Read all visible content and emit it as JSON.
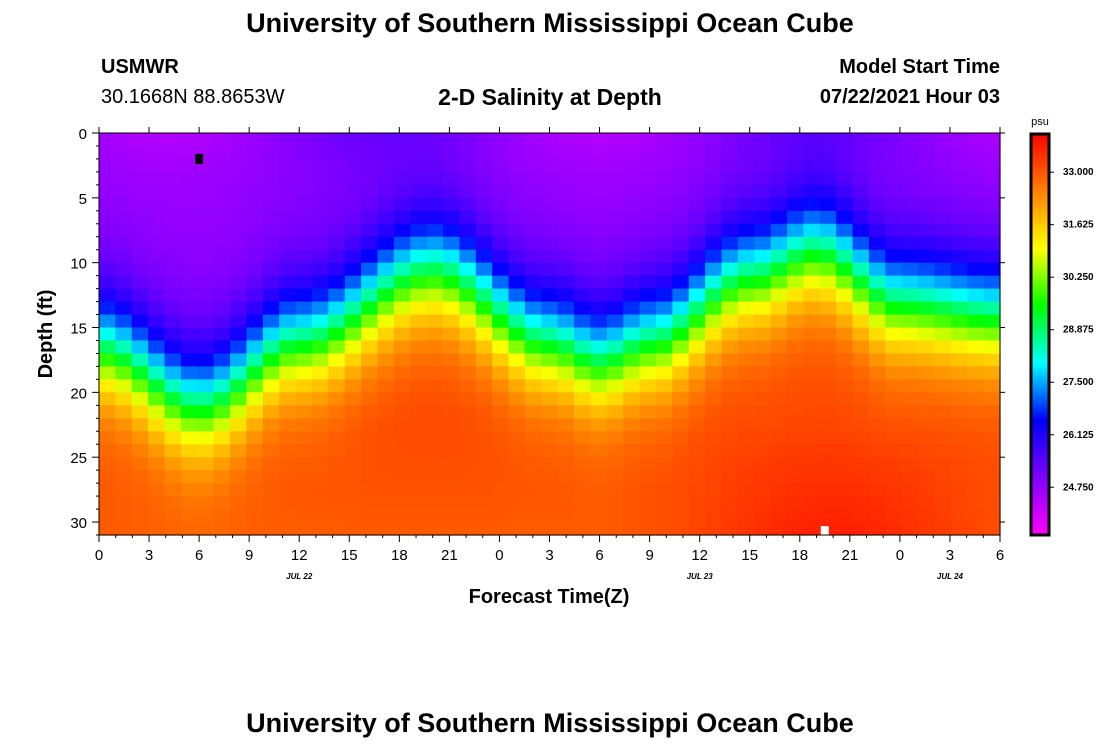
{
  "header": {
    "title": "University of Southern Mississippi Ocean Cube",
    "station_id": "USMWR",
    "station_coords": "30.1668N  88.8653W",
    "plot_title": "2-D Salinity at Depth",
    "model_start_label": "Model Start Time",
    "model_start_value": "07/22/2021 Hour 03"
  },
  "footer": {
    "title": "University of Southern Mississippi Ocean Cube"
  },
  "chart_data": {
    "type": "heatmap",
    "title": "2-D Salinity at Depth",
    "xlabel": "Forecast Time(Z)",
    "ylabel": "Depth (ft)",
    "x_hours_range": [
      0,
      54
    ],
    "y_range": [
      0,
      31
    ],
    "x_tick_labels": [
      "0",
      "3",
      "6",
      "9",
      "12",
      "15",
      "18",
      "21",
      "0",
      "3",
      "6",
      "9",
      "12",
      "15",
      "18",
      "21",
      "0",
      "3",
      "6"
    ],
    "x_date_labels": [
      {
        "label": "JUL 22",
        "hour": 12
      },
      {
        "label": "JUL 23",
        "hour": 36
      },
      {
        "label": "JUL 24",
        "hour": 51
      }
    ],
    "y_tick_labels": [
      "0",
      "5",
      "10",
      "15",
      "20",
      "25",
      "30"
    ],
    "y_ticks": [
      0,
      5,
      10,
      15,
      20,
      25,
      30
    ],
    "colorbar": {
      "unit": "psu",
      "min": 23.5,
      "max": 34.0,
      "tick_values": [
        33.0,
        31.625,
        30.25,
        28.875,
        27.5,
        26.125,
        24.75
      ],
      "tick_labels": [
        "33.000",
        "31.625",
        "30.250",
        "28.875",
        "27.500",
        "26.125",
        "24.750"
      ],
      "colors": [
        "#ff00ff",
        "#7f00ff",
        "#0000ff",
        "#00ffff",
        "#00ff00",
        "#ffff00",
        "#ff8000",
        "#ff0000"
      ]
    },
    "halocline_depth_ft": [
      {
        "hour": 0,
        "depth": 16.5
      },
      {
        "hour": 6,
        "depth": 21
      },
      {
        "hour": 12,
        "depth": 16
      },
      {
        "hour": 20,
        "depth": 10.5
      },
      {
        "hour": 27,
        "depth": 16
      },
      {
        "hour": 30,
        "depth": 17.5
      },
      {
        "hour": 33,
        "depth": 16
      },
      {
        "hour": 39,
        "depth": 11
      },
      {
        "hour": 43,
        "depth": 9
      },
      {
        "hour": 48,
        "depth": 13
      },
      {
        "hour": 54,
        "depth": 14
      }
    ],
    "markers": [
      {
        "hour": 6,
        "depth": 2,
        "color": "#000000"
      },
      {
        "hour": 43.5,
        "depth": 30.7,
        "color": "#ffffff"
      }
    ]
  }
}
